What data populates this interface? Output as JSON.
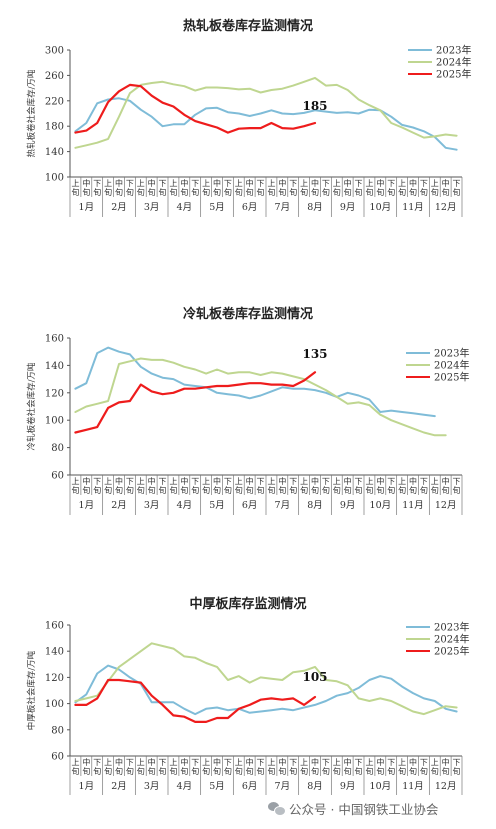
{
  "footer": {
    "text": "公众号 · 中国钢铁工业协会",
    "icon": "wechat-icon"
  },
  "x_axis": {
    "months": [
      "1月",
      "2月",
      "3月",
      "4月",
      "5月",
      "6月",
      "7月",
      "8月",
      "9月",
      "10月",
      "11月",
      "12月"
    ],
    "periods": [
      "上旬",
      "中旬",
      "下旬"
    ]
  },
  "legend_labels": [
    "2023年",
    "2024年",
    "2025年"
  ],
  "colors": {
    "2023年": "#7fbcd8",
    "2024年": "#bfd690",
    "2025年": "#ee1c1c"
  },
  "chart_data": [
    {
      "type": "line",
      "title": "热轧板卷库存监测情况",
      "ylabel": "热轧板卷社会库存/万吨",
      "ylim": [
        100,
        300
      ],
      "yticks": [
        100,
        140,
        180,
        220,
        260,
        300
      ],
      "legend_position": "top-right",
      "annotation": "185",
      "series": [
        {
          "name": "2023年",
          "values": [
            172,
            185,
            216,
            222,
            224,
            220,
            206,
            195,
            180,
            183,
            183,
            198,
            208,
            209,
            202,
            200,
            196,
            200,
            205,
            200,
            199,
            201,
            205,
            203,
            201,
            202,
            200,
            206,
            205,
            195,
            182,
            178,
            172,
            163,
            146,
            143
          ]
        },
        {
          "name": "2024年",
          "values": [
            146,
            150,
            154,
            160,
            195,
            232,
            245,
            248,
            250,
            246,
            243,
            236,
            241,
            241,
            240,
            238,
            239,
            233,
            237,
            239,
            244,
            250,
            256,
            244,
            245,
            237,
            222,
            213,
            205,
            185,
            178,
            170,
            162,
            164,
            167,
            165
          ]
        },
        {
          "name": "2025年",
          "values": [
            170,
            173,
            185,
            218,
            235,
            245,
            243,
            228,
            217,
            211,
            198,
            188,
            183,
            178,
            170,
            176,
            177,
            177,
            185,
            177,
            176,
            180,
            185
          ]
        }
      ]
    },
    {
      "type": "line",
      "title": "冷轧板卷库存监测情况",
      "ylabel": "冷轧板卷社会库存/万吨",
      "ylim": [
        60,
        160
      ],
      "yticks": [
        60,
        80,
        100,
        120,
        140,
        160
      ],
      "legend_position": "right",
      "annotation": "135",
      "series": [
        {
          "name": "2023年",
          "values": [
            123,
            127,
            149,
            153,
            150,
            148,
            139,
            134,
            131,
            130,
            126,
            125,
            124,
            120,
            119,
            118,
            116,
            118,
            121,
            124,
            123,
            123,
            122,
            120,
            117,
            120,
            118,
            115,
            106,
            107,
            106,
            105,
            104,
            103
          ]
        },
        {
          "name": "2024年",
          "values": [
            106,
            110,
            112,
            114,
            141,
            143,
            145,
            144,
            144,
            142,
            139,
            137,
            134,
            137,
            134,
            135,
            135,
            133,
            135,
            134,
            132,
            130,
            126,
            122,
            117,
            112,
            113,
            111,
            104,
            100,
            97,
            94,
            91,
            89,
            89
          ]
        },
        {
          "name": "2025年",
          "values": [
            91,
            93,
            95,
            109,
            113,
            114,
            126,
            121,
            119,
            120,
            123,
            123,
            124,
            125,
            125,
            126,
            127,
            127,
            126,
            126,
            125,
            129,
            135
          ]
        }
      ]
    },
    {
      "type": "line",
      "title": "中厚板库存监测情况",
      "ylabel": "中厚板社会库存/万吨",
      "ylim": [
        60,
        160
      ],
      "yticks": [
        60,
        80,
        100,
        120,
        140,
        160
      ],
      "legend_position": "top-right",
      "annotation": "105",
      "series": [
        {
          "name": "2023年",
          "values": [
            101,
            107,
            123,
            129,
            126,
            120,
            115,
            101,
            101,
            101,
            96,
            92,
            96,
            97,
            95,
            96,
            93,
            94,
            95,
            96,
            95,
            97,
            99,
            102,
            106,
            108,
            112,
            118,
            121,
            119,
            113,
            108,
            104,
            102,
            96,
            94
          ]
        },
        {
          "name": "2024年",
          "values": [
            102,
            104,
            106,
            117,
            128,
            134,
            140,
            146,
            144,
            142,
            136,
            135,
            131,
            128,
            118,
            121,
            116,
            120,
            119,
            118,
            124,
            125,
            128,
            118,
            117,
            114,
            104,
            102,
            104,
            102,
            98,
            94,
            92,
            95,
            98,
            97
          ]
        },
        {
          "name": "2025年",
          "values": [
            99,
            99,
            104,
            118,
            118,
            117,
            116,
            106,
            99,
            91,
            90,
            86,
            86,
            89,
            89,
            96,
            99,
            103,
            104,
            103,
            104,
            99,
            105
          ]
        }
      ]
    }
  ]
}
